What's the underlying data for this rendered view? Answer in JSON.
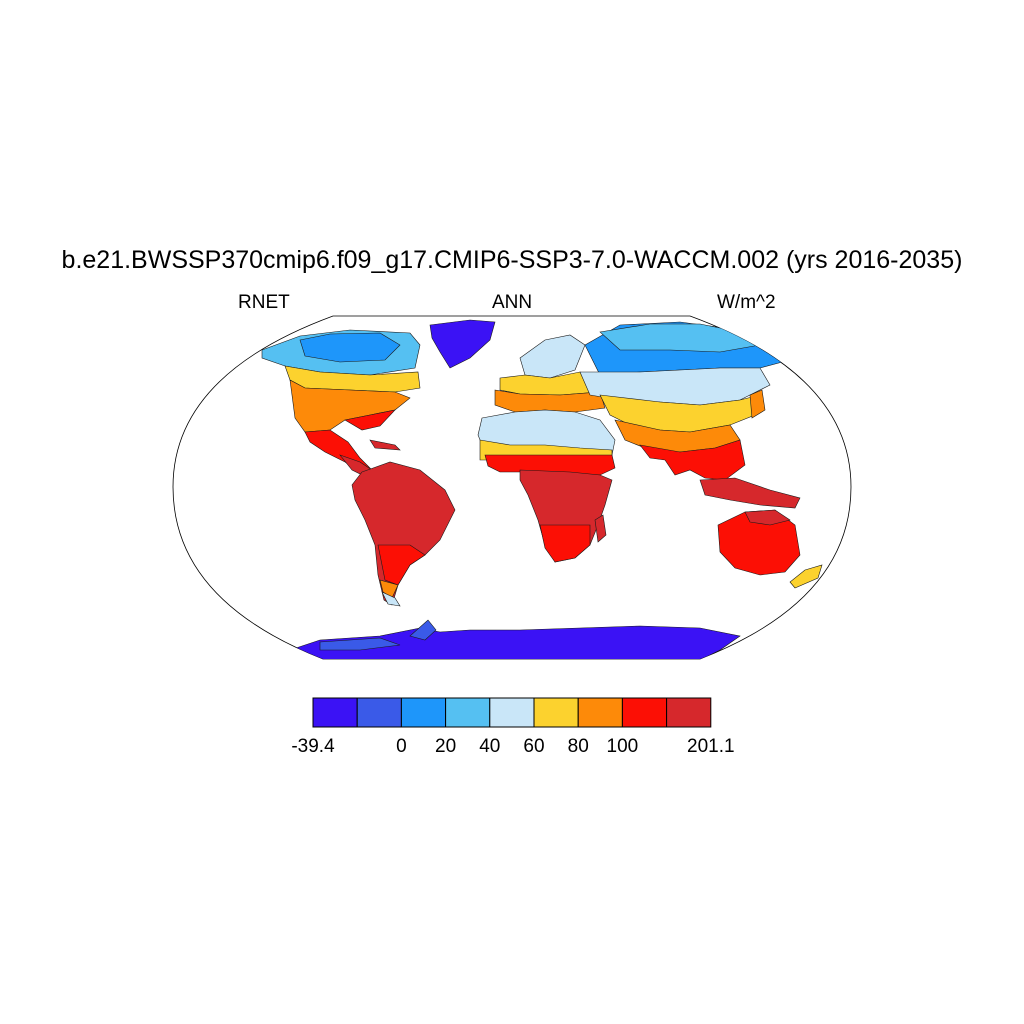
{
  "header": {
    "title": "b.e21.BWSSP370cmip6.f09_g17.CMIP6-SSP3-7.0-WACCM.002 (yrs 2016-2035)",
    "left": "RNET",
    "center": "ANN",
    "right": "W/m^2"
  },
  "map": {
    "projection": "Robinson",
    "variable": "RNET",
    "season": "ANN",
    "units": "W/m^2",
    "land_only": true
  },
  "colorbar": {
    "colors": [
      "#3b12f5",
      "#3a5ae8",
      "#1e96fa",
      "#55c0f2",
      "#c9e6f8",
      "#fcd22e",
      "#fd8a09",
      "#fc0f05",
      "#d6282c"
    ],
    "labels": [
      "-39.4",
      "",
      "0",
      "20",
      "40",
      "60",
      "80",
      "100",
      "",
      "201.1"
    ]
  }
}
